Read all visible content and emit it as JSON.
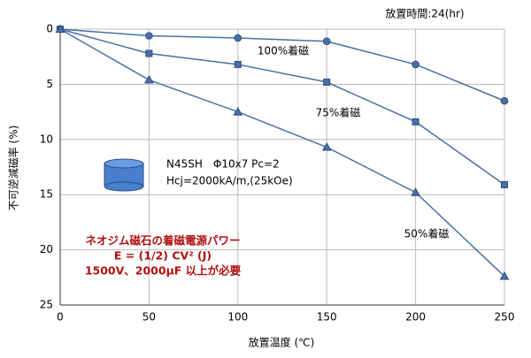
{
  "chart_data": {
    "type": "line",
    "top_note": "放置時間:24(hr)",
    "x_label": "放置温度 (℃)",
    "y_label": "不可逆減磁率 (%)",
    "x": [
      0,
      50,
      100,
      150,
      200,
      250
    ],
    "xlim": [
      0,
      250
    ],
    "xticks": [
      0,
      50,
      100,
      150,
      200,
      250
    ],
    "ylim": [
      0,
      25
    ],
    "yticks": [
      0,
      5,
      10,
      15,
      20,
      25
    ],
    "y_reversed": true,
    "grid": true,
    "series": [
      {
        "name": "100%着磁",
        "color": "#4a6fa5",
        "marker": "circle",
        "values": [
          0,
          0.6,
          0.8,
          1.1,
          3.2,
          6.5
        ]
      },
      {
        "name": "75%着磁",
        "color": "#4a6fa5",
        "marker": "square",
        "values": [
          0,
          2.2,
          3.2,
          4.8,
          8.4,
          14.1
        ]
      },
      {
        "name": "50%着磁",
        "color": "#4a6fa5",
        "marker": "triangle",
        "values": [
          0,
          4.6,
          7.5,
          10.7,
          14.8,
          22.4
        ]
      }
    ],
    "magnet_notes": [
      "N45SH　Φ10x7 Pc=2",
      "Hcj=2000kA/m,(25kOe)"
    ],
    "power_notes": [
      "ネオジム磁石の着磁電源パワー",
      "E = (1/2) CV² (J)",
      "1500V、2000μF 以上が必要"
    ]
  }
}
